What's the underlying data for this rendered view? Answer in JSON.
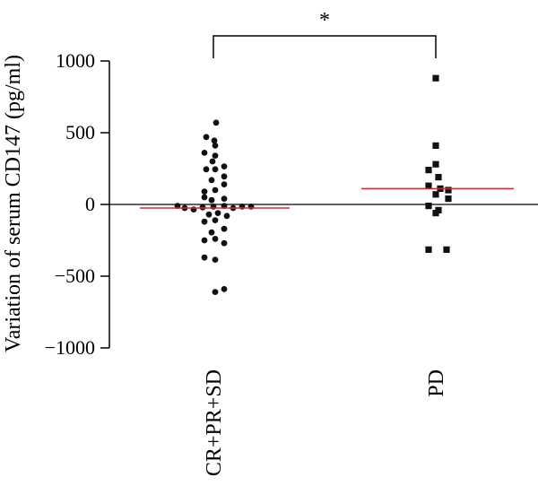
{
  "chart_data": {
    "type": "scatter",
    "title": "",
    "xlabel": "",
    "ylabel": "Variation of serum CD147 (pg/ml)",
    "ylim": [
      -1000,
      1000
    ],
    "yticks": [
      1000,
      500,
      0,
      -500,
      -1000
    ],
    "ytick_labels": [
      "1000",
      "500",
      "0",
      "−500",
      "−1000"
    ],
    "categories": [
      "CR+PR+SD",
      "PD"
    ],
    "zero_line": true,
    "significance": {
      "label": "*",
      "between": [
        "CR+PR+SD",
        "PD"
      ]
    },
    "series": [
      {
        "category": "CR+PR+SD",
        "marker": "circle",
        "color": "#111111",
        "median": -25,
        "median_color": "#e0242b",
        "points": [
          {
            "offset": 3,
            "y": 570
          },
          {
            "offset": -8,
            "y": 470
          },
          {
            "offset": 1,
            "y": 445
          },
          {
            "offset": 2,
            "y": 410
          },
          {
            "offset": -10,
            "y": 360
          },
          {
            "offset": 2,
            "y": 340
          },
          {
            "offset": -1,
            "y": 300
          },
          {
            "offset": 12,
            "y": 265
          },
          {
            "offset": -8,
            "y": 245
          },
          {
            "offset": 2,
            "y": 245
          },
          {
            "offset": 12,
            "y": 195
          },
          {
            "offset": -2,
            "y": 170
          },
          {
            "offset": 12,
            "y": 140
          },
          {
            "offset": -10,
            "y": 90
          },
          {
            "offset": 2,
            "y": 100
          },
          {
            "offset": -10,
            "y": 50
          },
          {
            "offset": 12,
            "y": 40
          },
          {
            "offset": -2,
            "y": 30
          },
          {
            "offset": -40,
            "y": -10
          },
          {
            "offset": -32,
            "y": -25
          },
          {
            "offset": -22,
            "y": -35
          },
          {
            "offset": -12,
            "y": -20
          },
          {
            "offset": 0,
            "y": -15
          },
          {
            "offset": 12,
            "y": -10
          },
          {
            "offset": 22,
            "y": -25
          },
          {
            "offset": 32,
            "y": -15
          },
          {
            "offset": 42,
            "y": -15
          },
          {
            "offset": -5,
            "y": -70
          },
          {
            "offset": 5,
            "y": -60
          },
          {
            "offset": 15,
            "y": -80
          },
          {
            "offset": -10,
            "y": -120
          },
          {
            "offset": 2,
            "y": -110
          },
          {
            "offset": 12,
            "y": -170
          },
          {
            "offset": -2,
            "y": -195
          },
          {
            "offset": -10,
            "y": -250
          },
          {
            "offset": 2,
            "y": -240
          },
          {
            "offset": 12,
            "y": -270
          },
          {
            "offset": -10,
            "y": -370
          },
          {
            "offset": 2,
            "y": -385
          },
          {
            "offset": 12,
            "y": -590
          },
          {
            "offset": 2,
            "y": -610
          }
        ]
      },
      {
        "category": "PD",
        "marker": "square",
        "color": "#111111",
        "median": 110,
        "median_color": "#e0242b",
        "points": [
          {
            "offset": 0,
            "y": 880
          },
          {
            "offset": 0,
            "y": 410
          },
          {
            "offset": 0,
            "y": 280
          },
          {
            "offset": -8,
            "y": 240
          },
          {
            "offset": 3,
            "y": 190
          },
          {
            "offset": -8,
            "y": 130
          },
          {
            "offset": 5,
            "y": 110
          },
          {
            "offset": 14,
            "y": 100
          },
          {
            "offset": 14,
            "y": 40
          },
          {
            "offset": 0,
            "y": 70
          },
          {
            "offset": -8,
            "y": -10
          },
          {
            "offset": 3,
            "y": -40
          },
          {
            "offset": 0,
            "y": -60
          },
          {
            "offset": -8,
            "y": -315
          },
          {
            "offset": 12,
            "y": -315
          }
        ]
      }
    ]
  }
}
